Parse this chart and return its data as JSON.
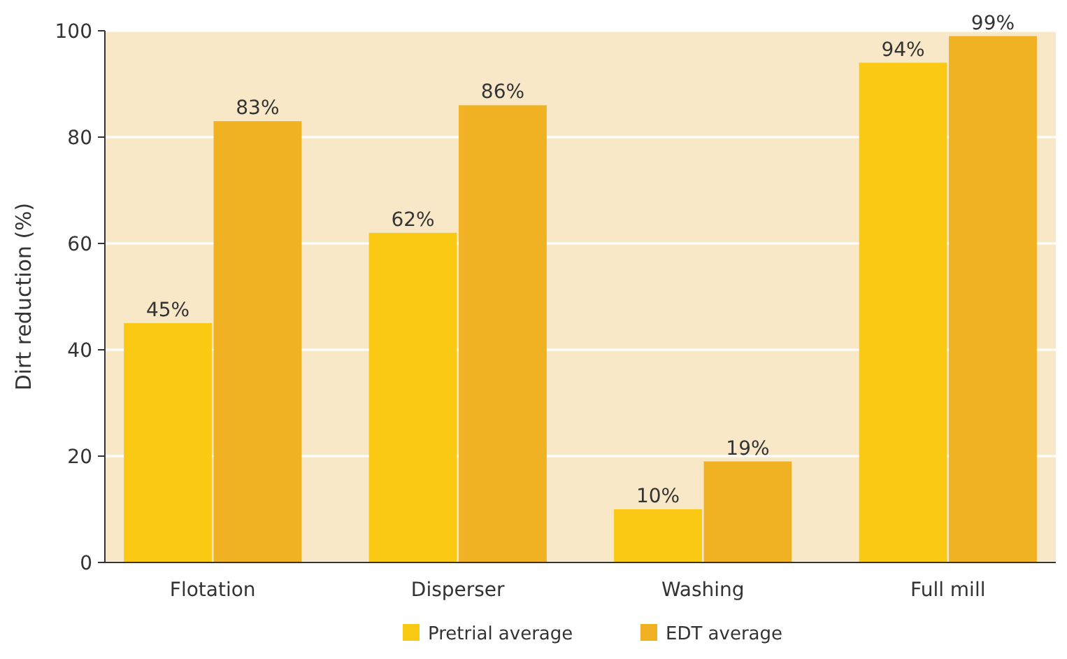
{
  "chart_data": {
    "type": "bar",
    "ylabel": "Dirt reduction (%)",
    "categories": [
      "Flotation",
      "Disperser",
      "Washing",
      "Full mill"
    ],
    "series": [
      {
        "name": "Pretrial average",
        "color": "#f9c914",
        "values": [
          45,
          62,
          10,
          94
        ],
        "value_labels": [
          "45%",
          "62%",
          "10%",
          "94%"
        ]
      },
      {
        "name": "EDT average",
        "color": "#f0b223",
        "values": [
          83,
          86,
          19,
          99
        ],
        "value_labels": [
          "83%",
          "86%",
          "19%",
          "99%"
        ]
      }
    ],
    "ylim": [
      0,
      100
    ],
    "yticks": [
      0,
      20,
      40,
      60,
      80,
      100
    ],
    "grid": "y",
    "legend": "bottom"
  }
}
